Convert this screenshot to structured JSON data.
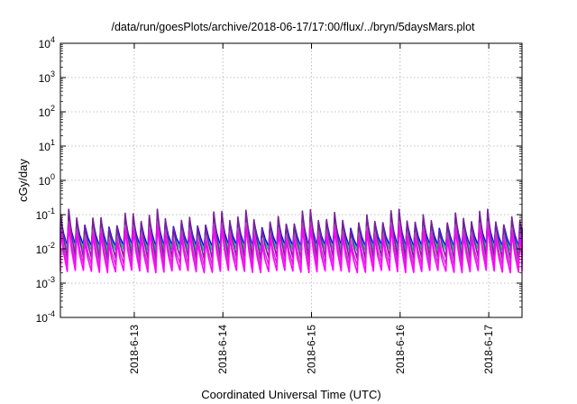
{
  "chart_data": {
    "type": "line",
    "title": "/data/run/goesPlots/archive/2018-06-17/17:00/flux/../bryn/5daysMars.plot",
    "xlabel": "Coordinated Universal Time (UTC)",
    "ylabel": "cGy/day",
    "y_scale": "log",
    "ylim": [
      0.0001,
      10000
    ],
    "y_ticks": [
      {
        "base": "10",
        "exp": "-4"
      },
      {
        "base": "10",
        "exp": "-3"
      },
      {
        "base": "10",
        "exp": "-2"
      },
      {
        "base": "10",
        "exp": "-1"
      },
      {
        "base": "10",
        "exp": "0"
      },
      {
        "base": "10",
        "exp": "1"
      },
      {
        "base": "10",
        "exp": "2"
      },
      {
        "base": "10",
        "exp": "3"
      },
      {
        "base": "10",
        "exp": "4"
      }
    ],
    "xlim": [
      "2018-06-12T04:00",
      "2018-06-17T09:00"
    ],
    "x_ticks": [
      "2018-6-13",
      "2018-6-14",
      "2018-6-15",
      "2018-6-16",
      "2018-6-17"
    ],
    "grid": true,
    "pattern": {
      "teeth_per_day": 11,
      "description": "sawtooth oscillation, sharp rise then gradual decay"
    },
    "series": [
      {
        "color": "#0000ff",
        "peak": 0.065,
        "trough": 0.012
      },
      {
        "color": "#00a0b0",
        "peak": 0.05,
        "trough": 0.0095
      },
      {
        "color": "#22cc77",
        "peak": 0.04,
        "trough": 0.0105
      },
      {
        "color": "#7a1f9a",
        "peak": 0.075,
        "trough": 0.0055
      },
      {
        "color": "#cc33cc",
        "peak": 0.035,
        "trough": 0.0035
      },
      {
        "color": "#ff00ff",
        "peak": 0.025,
        "trough": 0.0022
      }
    ]
  }
}
